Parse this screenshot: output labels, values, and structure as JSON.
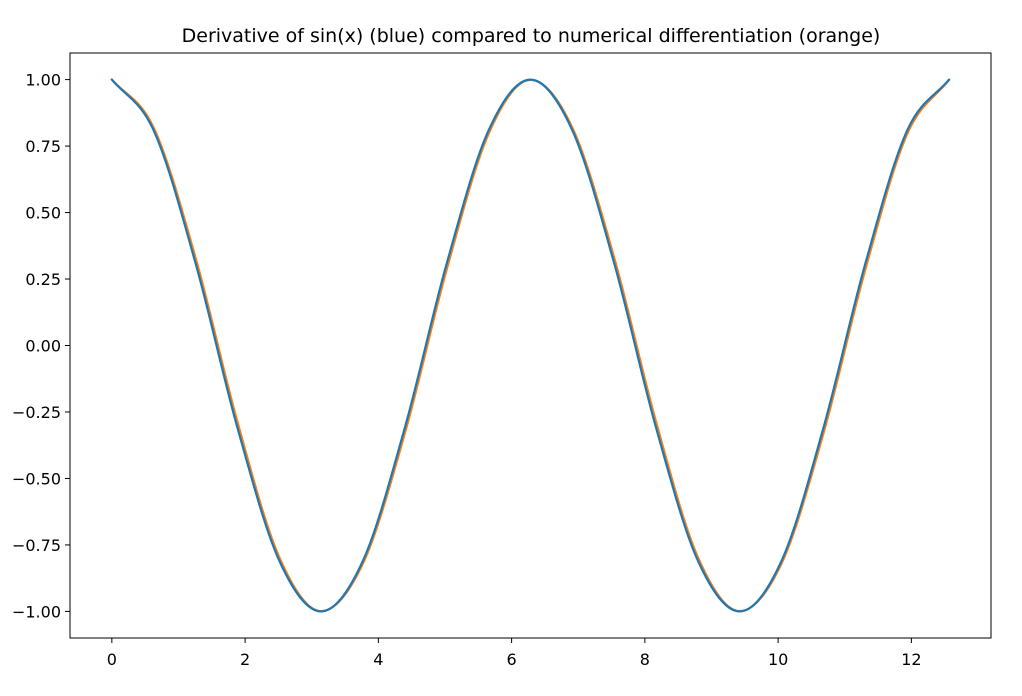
{
  "chart_data": {
    "type": "line",
    "title": "Derivative of sin(x) (blue) compared to numerical differentiation (orange)",
    "xlabel": "",
    "ylabel": "",
    "xlim": [
      -0.628,
      13.195
    ],
    "ylim": [
      -1.1,
      1.1
    ],
    "grid": false,
    "x_ticks": [
      0,
      2,
      4,
      6,
      8,
      10,
      12
    ],
    "x_tick_labels": [
      "0",
      "2",
      "4",
      "6",
      "8",
      "10",
      "12"
    ],
    "y_ticks": [
      1.0,
      0.75,
      0.5,
      0.25,
      0.0,
      -0.25,
      -0.5,
      -0.75,
      -1.0
    ],
    "y_tick_labels": [
      "1.00",
      "0.75",
      "0.50",
      "0.25",
      "0.00",
      "−0.25",
      "−0.50",
      "−0.75",
      "−1.00"
    ],
    "x": [
      0.0,
      0.628,
      1.257,
      1.885,
      2.513,
      3.142,
      3.77,
      4.398,
      5.027,
      5.655,
      6.283,
      6.912,
      7.54,
      8.168,
      8.796,
      9.425,
      10.053,
      10.681,
      11.31,
      11.938,
      12.566
    ],
    "series": [
      {
        "color": "#1f77b4",
        "values": [
          1.0,
          0.809,
          0.309,
          -0.309,
          -0.809,
          -1.0,
          -0.809,
          -0.309,
          0.309,
          0.809,
          1.0,
          0.809,
          0.309,
          -0.309,
          -0.809,
          -1.0,
          -0.809,
          -0.309,
          0.309,
          0.809,
          1.0
        ]
      },
      {
        "color": "#ff7f0e",
        "values": [
          1.0,
          0.819,
          0.33,
          -0.287,
          -0.796,
          -0.999,
          -0.819,
          -0.33,
          0.287,
          0.796,
          0.999,
          0.819,
          0.33,
          -0.287,
          -0.796,
          -0.999,
          -0.819,
          -0.33,
          0.287,
          0.796,
          0.999
        ]
      }
    ]
  }
}
